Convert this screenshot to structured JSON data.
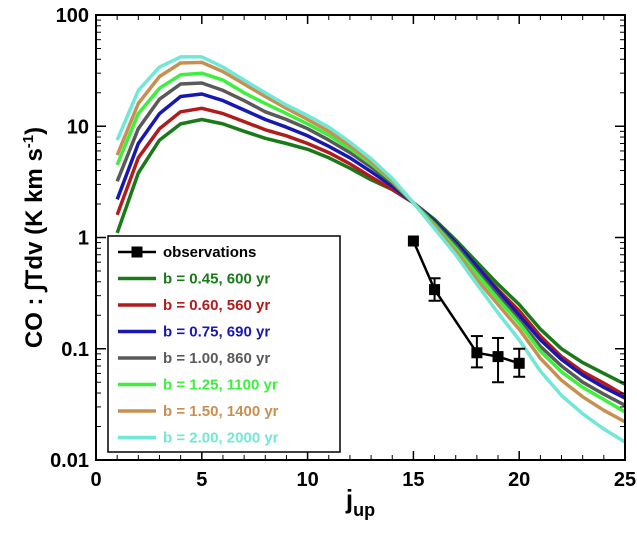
{
  "chart_data": {
    "type": "line",
    "xlabel": "j",
    "xlabel_sub": "up",
    "ylabel": "CO : ∫Tdv (K km s",
    "ylabel_sup": "-1",
    "ylabel_close": ")",
    "xlim": [
      0,
      25
    ],
    "ylim": [
      0.01,
      100
    ],
    "yscale": "log",
    "x_ticks": [
      0,
      5,
      10,
      15,
      20,
      25
    ],
    "y_ticks": [
      {
        "value": 0.01,
        "label": "0.01"
      },
      {
        "value": 0.1,
        "label": "0.1"
      },
      {
        "value": 1,
        "label": "1"
      },
      {
        "value": 10,
        "label": "10"
      },
      {
        "value": 100,
        "label": "100"
      }
    ],
    "grid": false,
    "legend_position": "lower-left",
    "x": [
      1,
      2,
      3,
      4,
      5,
      6,
      7,
      8,
      9,
      10,
      11,
      12,
      13,
      14,
      15,
      16,
      17,
      18,
      19,
      20,
      21,
      22,
      23,
      24,
      25
    ],
    "series": [
      {
        "name": "b = 0.45, 600 yr",
        "color": "#1a7a1a",
        "values": [
          1.1,
          3.8,
          7.5,
          10.5,
          11.5,
          10.5,
          9,
          7.8,
          7,
          6.2,
          5.2,
          4.2,
          3.3,
          2.7,
          2.05,
          1.45,
          0.95,
          0.6,
          0.38,
          0.25,
          0.15,
          0.1,
          0.075,
          0.06,
          0.048
        ]
      },
      {
        "name": "b = 0.60, 560 yr",
        "color": "#b01c1c",
        "values": [
          1.6,
          5.2,
          9.5,
          13.5,
          14.5,
          13,
          11,
          9.3,
          8.2,
          7,
          5.8,
          4.6,
          3.5,
          2.7,
          2.05,
          1.4,
          0.9,
          0.55,
          0.34,
          0.22,
          0.13,
          0.085,
          0.062,
          0.049,
          0.038
        ]
      },
      {
        "name": "b = 0.75, 690 yr",
        "color": "#1818b0",
        "values": [
          2.2,
          7,
          13,
          18.5,
          19.5,
          17,
          14,
          11.5,
          9.8,
          8.2,
          6.6,
          5.2,
          3.9,
          2.9,
          2.05,
          1.4,
          0.9,
          0.55,
          0.33,
          0.2,
          0.12,
          0.08,
          0.058,
          0.045,
          0.036
        ]
      },
      {
        "name": "b = 1.00, 860 yr",
        "color": "#5a5a5a",
        "values": [
          3.2,
          9.5,
          17.5,
          24,
          24.5,
          21,
          17,
          13.5,
          11.5,
          9.5,
          7.5,
          5.8,
          4.3,
          3.1,
          2.05,
          1.35,
          0.85,
          0.5,
          0.3,
          0.18,
          0.105,
          0.07,
          0.05,
          0.039,
          0.031
        ]
      },
      {
        "name": "b = 1.25, 1100 yr",
        "color": "#3cf03c",
        "values": [
          4.5,
          13,
          22,
          29,
          30,
          26,
          20,
          16,
          13,
          10.5,
          8.3,
          6.3,
          4.6,
          3.2,
          2.05,
          1.3,
          0.8,
          0.47,
          0.28,
          0.17,
          0.095,
          0.062,
          0.045,
          0.035,
          0.027
        ]
      },
      {
        "name": "b = 1.50, 1400 yr",
        "color": "#c89050",
        "values": [
          5.5,
          16,
          28,
          37,
          37.5,
          31,
          24,
          18.5,
          14.5,
          11.5,
          9,
          6.7,
          4.8,
          3.3,
          2.05,
          1.25,
          0.75,
          0.42,
          0.25,
          0.15,
          0.082,
          0.052,
          0.037,
          0.028,
          0.022
        ]
      },
      {
        "name": "b = 2.00, 2000 yr",
        "color": "#70e8d8",
        "values": [
          7.5,
          21,
          34,
          42,
          42,
          34,
          26,
          20,
          15.5,
          12.5,
          9.8,
          7.2,
          5.1,
          3.4,
          2.05,
          1.2,
          0.7,
          0.38,
          0.21,
          0.12,
          0.063,
          0.038,
          0.026,
          0.019,
          0.0145
        ]
      }
    ],
    "observations": {
      "name": "observations",
      "color": "#000000",
      "points": [
        {
          "x": 15,
          "y": 0.93,
          "ylo": 0.93,
          "yhi": 0.93
        },
        {
          "x": 16,
          "y": 0.34,
          "ylo": 0.27,
          "yhi": 0.43
        },
        {
          "x": 18,
          "y": 0.092,
          "ylo": 0.068,
          "yhi": 0.13
        },
        {
          "x": 19,
          "y": 0.085,
          "ylo": 0.05,
          "yhi": 0.125
        },
        {
          "x": 20,
          "y": 0.074,
          "ylo": 0.056,
          "yhi": 0.1
        }
      ]
    }
  }
}
